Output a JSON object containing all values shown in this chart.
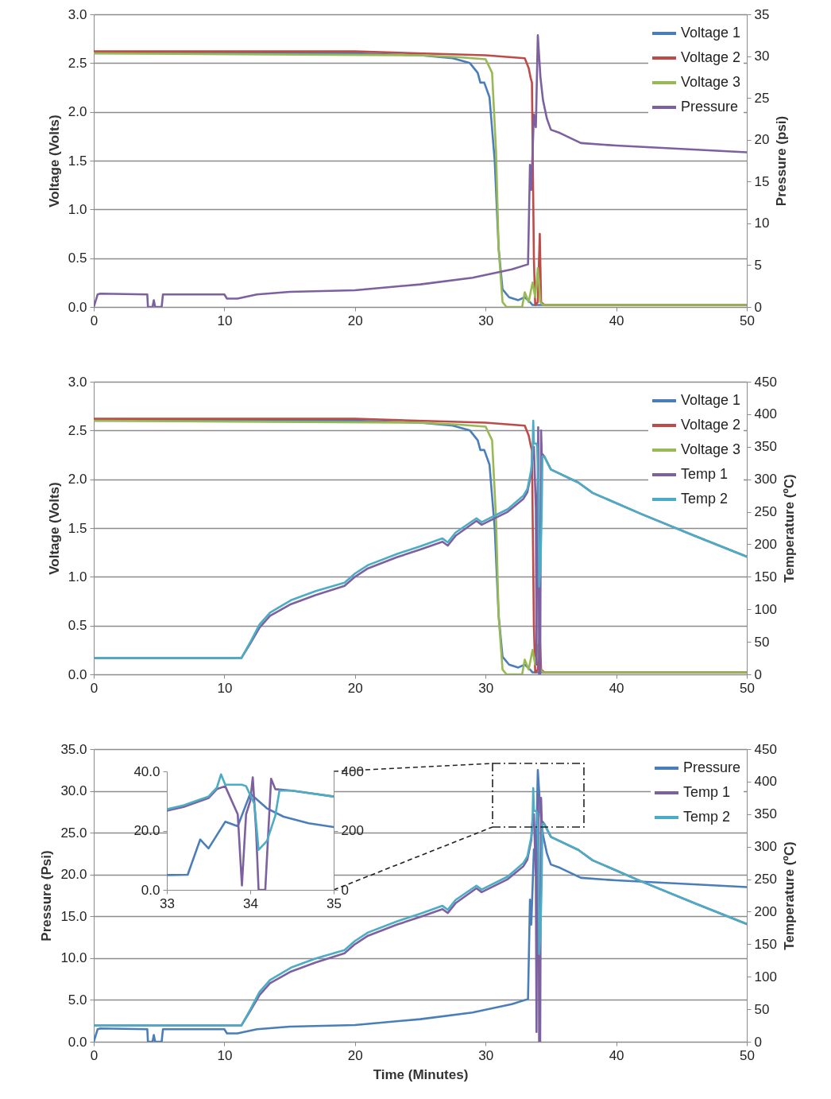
{
  "chart_data": [
    {
      "type": "line",
      "ylabel": "Voltage (Volts)",
      "y2label": "Pressure (psi)",
      "xlim": [
        0,
        50
      ],
      "xticks": [
        0,
        10,
        20,
        30,
        40,
        50
      ],
      "ylim": [
        0,
        3
      ],
      "yticks": [
        {
          "value": 0,
          "label": "0.0"
        },
        {
          "value": 0.5,
          "label": "0.5"
        },
        {
          "value": 1,
          "label": "1.0"
        },
        {
          "value": 1.5,
          "label": "1.5"
        },
        {
          "value": 2,
          "label": "2.0"
        },
        {
          "value": 2.5,
          "label": "2.5"
        },
        {
          "value": 3,
          "label": "3.0"
        }
      ],
      "y2lim": [
        0,
        35
      ],
      "y2ticks": [
        0,
        5,
        10,
        15,
        20,
        25,
        30,
        35
      ],
      "grid": "y",
      "legend": "top right",
      "series": [
        {
          "name": "Voltage 1",
          "color": "#4a7ebb",
          "x": [
            0,
            20,
            25,
            27.5,
            28.8,
            29.4,
            29.6,
            29.9,
            30.3,
            30.7,
            31,
            31.3,
            31.8,
            32.5,
            33,
            33.4,
            33.6,
            50
          ],
          "values": [
            2.6,
            2.6,
            2.58,
            2.55,
            2.5,
            2.4,
            2.3,
            2.3,
            2.15,
            1.5,
            0.6,
            0.18,
            0.1,
            0.07,
            0.1,
            0.05,
            0.02,
            0.02
          ]
        },
        {
          "name": "Voltage 2",
          "color": "#be4b48",
          "x": [
            0,
            20,
            30,
            33,
            33.3,
            33.45,
            33.55,
            33.7,
            33.8,
            34,
            34.15,
            34.25,
            34.5,
            50
          ],
          "values": [
            2.62,
            2.62,
            2.58,
            2.55,
            2.45,
            2.35,
            2.3,
            0.5,
            0.02,
            0.05,
            0.75,
            0.05,
            0.02,
            0.02
          ]
        },
        {
          "name": "Voltage 3",
          "color": "#98b954",
          "x": [
            0,
            25,
            28,
            30,
            30.5,
            30.8,
            31,
            31.3,
            31.6,
            32.8,
            33,
            33.3,
            33.6,
            33.8,
            34,
            34.2,
            34.4,
            50
          ],
          "values": [
            2.6,
            2.58,
            2.56,
            2.54,
            2.4,
            1.6,
            0.6,
            0.05,
            0,
            0,
            0.15,
            0.05,
            0.25,
            0.1,
            0.4,
            0.05,
            0.02,
            0.02
          ]
        },
        {
          "name": "Pressure",
          "color": "#7d60a0",
          "axis": "y2",
          "x": [
            0,
            0.3,
            0.5,
            4.1,
            4.15,
            4.5,
            4.6,
            4.7,
            5.2,
            5.3,
            10,
            10.2,
            11,
            12.5,
            15,
            20,
            25,
            29,
            32,
            33.25,
            33.4,
            33.5,
            33.7,
            33.85,
            34,
            34.2,
            34.4,
            34.7,
            35,
            35.7,
            37.3,
            40,
            45,
            50
          ],
          "values": [
            0,
            1.5,
            1.6,
            1.5,
            0,
            0,
            0.8,
            0,
            0,
            1.5,
            1.5,
            1,
            1,
            1.5,
            1.8,
            2,
            2.7,
            3.5,
            4.5,
            5.1,
            17,
            14,
            23,
            21.5,
            32.5,
            27.5,
            24.7,
            22.5,
            21.2,
            20.8,
            19.6,
            19.3,
            18.9,
            18.5
          ]
        }
      ]
    },
    {
      "type": "line",
      "ylabel": "Voltage (Volts)",
      "y2label": "Temperature (ºC)",
      "xlim": [
        0,
        50
      ],
      "xticks": [
        0,
        10,
        20,
        30,
        40,
        50
      ],
      "ylim": [
        0,
        3
      ],
      "yticks": [
        {
          "value": 0,
          "label": "0.0"
        },
        {
          "value": 0.5,
          "label": "0.5"
        },
        {
          "value": 1,
          "label": "1.0"
        },
        {
          "value": 1.5,
          "label": "1.5"
        },
        {
          "value": 2,
          "label": "2.0"
        },
        {
          "value": 2.5,
          "label": "2.5"
        },
        {
          "value": 3,
          "label": "3.0"
        }
      ],
      "y2lim": [
        0,
        450
      ],
      "y2ticks": [
        0,
        50,
        100,
        150,
        200,
        250,
        300,
        350,
        400,
        450
      ],
      "grid": "y",
      "legend": "top right",
      "series": [
        {
          "name": "Voltage 1",
          "color": "#4a7ebb",
          "x": [
            0,
            20,
            25,
            27.5,
            28.8,
            29.4,
            29.6,
            29.9,
            30.3,
            30.7,
            31,
            31.3,
            31.8,
            32.5,
            33,
            33.4,
            33.6,
            50
          ],
          "values": [
            2.6,
            2.6,
            2.58,
            2.55,
            2.5,
            2.4,
            2.3,
            2.3,
            2.15,
            1.5,
            0.6,
            0.18,
            0.1,
            0.07,
            0.1,
            0.05,
            0.02,
            0.02
          ]
        },
        {
          "name": "Voltage 2",
          "color": "#be4b48",
          "x": [
            0,
            20,
            30,
            33,
            33.3,
            33.45,
            33.55,
            33.7,
            33.8,
            34,
            34.15,
            34.25,
            34.5,
            50
          ],
          "values": [
            2.62,
            2.62,
            2.58,
            2.55,
            2.45,
            2.35,
            2.3,
            0.5,
            0.02,
            0.05,
            0.4,
            0.05,
            0.02,
            0.02
          ]
        },
        {
          "name": "Voltage 3",
          "color": "#98b954",
          "x": [
            0,
            25,
            28,
            30,
            30.5,
            30.8,
            31,
            31.3,
            31.6,
            32.8,
            33,
            33.3,
            33.6,
            33.8,
            34,
            34.2,
            34.4,
            50
          ],
          "values": [
            2.6,
            2.58,
            2.56,
            2.54,
            2.4,
            1.6,
            0.6,
            0.05,
            0,
            0,
            0.15,
            0.05,
            0.25,
            0.1,
            0.3,
            0.05,
            0.02,
            0.02
          ]
        },
        {
          "name": "Temp 1",
          "color": "#7d60a0",
          "axis": "y2",
          "x": [
            0,
            11.3,
            12,
            12.7,
            13.5,
            15.1,
            17,
            19.2,
            20,
            21,
            23.2,
            25,
            26.7,
            27.1,
            27.7,
            29.3,
            29.7,
            31.7,
            32.9,
            33.2,
            33.5,
            33.6,
            33.7,
            33.85,
            33.9,
            33.95,
            34,
            34.03,
            34.07,
            34.1,
            34.18,
            34.25,
            34.3,
            34.5,
            35,
            37.1,
            38.2,
            42,
            46,
            50
          ],
          "values": [
            25,
            25,
            48,
            72,
            90,
            108,
            122,
            136,
            150,
            163,
            180,
            192,
            204,
            198,
            213,
            236,
            230,
            250,
            270,
            280,
            310,
            340,
            350,
            255,
            15,
            255,
            300,
            380,
            200,
            0,
            0,
            375,
            340,
            335,
            315,
            295,
            279,
            246,
            213,
            181
          ]
        },
        {
          "name": "Temp 2",
          "color": "#4bacc6",
          "axis": "y2",
          "x": [
            0,
            11.3,
            12,
            12.7,
            13.5,
            15.1,
            17,
            19.2,
            20,
            21,
            23.2,
            25,
            26.7,
            27.1,
            27.7,
            29.3,
            29.7,
            31.7,
            32.9,
            33.2,
            33.5,
            33.6,
            33.65,
            33.7,
            33.9,
            33.95,
            34.05,
            34.1,
            34.2,
            34.3,
            34.35,
            34.5,
            35,
            37.1,
            38.2,
            42,
            46,
            50
          ],
          "values": [
            25,
            25,
            50,
            77,
            95,
            114,
            128,
            141,
            155,
            168,
            185,
            197,
            209,
            203,
            218,
            240,
            234,
            254,
            275,
            285,
            315,
            345,
            390,
            355,
            355,
            350,
            290,
            135,
            165,
            250,
            335,
            335,
            315,
            295,
            279,
            246,
            213,
            181
          ]
        }
      ]
    },
    {
      "type": "line",
      "xlabel": "Time (Minutes)",
      "ylabel": "Pressure (Psi)",
      "y2label": "Temperature (ºC)",
      "xlim": [
        0,
        50
      ],
      "xticks": [
        0,
        10,
        20,
        30,
        40,
        50
      ],
      "ylim": [
        0,
        35
      ],
      "yticks": [
        {
          "value": 0,
          "label": "0.0"
        },
        {
          "value": 5,
          "label": "5.0"
        },
        {
          "value": 10,
          "label": "10.0"
        },
        {
          "value": 15,
          "label": "15.0"
        },
        {
          "value": 20,
          "label": "20.0"
        },
        {
          "value": 25,
          "label": "25.0"
        },
        {
          "value": 30,
          "label": "30.0"
        },
        {
          "value": 35,
          "label": "35.0"
        }
      ],
      "y2lim": [
        0,
        450
      ],
      "y2ticks": [
        0,
        50,
        100,
        150,
        200,
        250,
        300,
        350,
        400,
        450
      ],
      "grid": "y",
      "legend": "top right",
      "series": [
        {
          "name": "Pressure",
          "color": "#4a7ebb",
          "x": [
            0,
            0.3,
            0.5,
            4.1,
            4.15,
            4.5,
            4.6,
            4.7,
            5.2,
            5.3,
            10,
            10.2,
            11,
            12.5,
            15,
            20,
            25,
            29,
            32,
            33.25,
            33.4,
            33.5,
            33.7,
            33.85,
            34,
            34.2,
            34.4,
            34.7,
            35,
            35.7,
            37.3,
            40,
            45,
            50
          ],
          "values": [
            0,
            1.5,
            1.6,
            1.5,
            0,
            0,
            0.8,
            0,
            0,
            1.5,
            1.5,
            1,
            1,
            1.5,
            1.8,
            2,
            2.7,
            3.5,
            4.5,
            5.1,
            17,
            14,
            23,
            21.5,
            32.5,
            27.5,
            24.7,
            22.5,
            21.2,
            20.8,
            19.6,
            19.3,
            18.9,
            18.5
          ]
        },
        {
          "name": "Temp 1",
          "color": "#7d60a0",
          "axis": "y2",
          "x": [
            0,
            11.3,
            12,
            12.7,
            13.5,
            15.1,
            17,
            19.2,
            20,
            21,
            23.2,
            25,
            26.7,
            27.1,
            27.7,
            29.3,
            29.7,
            31.7,
            32.9,
            33.2,
            33.5,
            33.6,
            33.7,
            33.85,
            33.9,
            33.95,
            34,
            34.03,
            34.07,
            34.1,
            34.18,
            34.25,
            34.3,
            34.5,
            35,
            37.1,
            38.2,
            42,
            46,
            50
          ],
          "values": [
            25,
            25,
            48,
            72,
            90,
            108,
            122,
            136,
            150,
            163,
            180,
            192,
            204,
            198,
            213,
            236,
            230,
            250,
            270,
            280,
            310,
            340,
            350,
            255,
            15,
            255,
            300,
            380,
            200,
            0,
            0,
            375,
            340,
            335,
            315,
            295,
            279,
            246,
            213,
            181
          ]
        },
        {
          "name": "Temp 2",
          "color": "#4bacc6",
          "axis": "y2",
          "x": [
            0,
            11.3,
            12,
            12.7,
            13.5,
            15.1,
            17,
            19.2,
            20,
            21,
            23.2,
            25,
            26.7,
            27.1,
            27.7,
            29.3,
            29.7,
            31.7,
            32.9,
            33.2,
            33.5,
            33.6,
            33.65,
            33.7,
            33.9,
            33.95,
            34.05,
            34.1,
            34.2,
            34.3,
            34.35,
            34.5,
            35,
            37.1,
            38.2,
            42,
            46,
            50
          ],
          "values": [
            25,
            25,
            50,
            77,
            95,
            114,
            128,
            141,
            155,
            168,
            185,
            197,
            209,
            203,
            218,
            240,
            234,
            254,
            275,
            285,
            315,
            345,
            390,
            355,
            355,
            350,
            290,
            135,
            165,
            250,
            335,
            335,
            315,
            295,
            279,
            246,
            213,
            181
          ]
        }
      ]
    },
    {
      "type": "line",
      "xlim": [
        33,
        35
      ],
      "xticks": [
        33,
        34,
        35
      ],
      "ylim": [
        0,
        40
      ],
      "yticks": [
        {
          "value": 0,
          "label": "0.0"
        },
        {
          "value": 20,
          "label": "20.0"
        },
        {
          "value": 40,
          "label": "40.0"
        }
      ],
      "y2lim": [
        0,
        400
      ],
      "y2ticks": [
        0,
        200,
        400
      ],
      "series": [
        {
          "color": "#4a7ebb",
          "x": [
            33,
            33.25,
            33.4,
            33.5,
            33.7,
            33.85,
            34,
            34.2,
            34.4,
            34.7,
            35
          ],
          "values": [
            5,
            5.1,
            17,
            14,
            23,
            21.5,
            32.5,
            27.5,
            24.7,
            22.5,
            21.2
          ]
        },
        {
          "color": "#7d60a0",
          "axis": "y2",
          "x": [
            33,
            33.2,
            33.5,
            33.6,
            33.7,
            33.85,
            33.9,
            33.95,
            34,
            34.03,
            34.07,
            34.1,
            34.18,
            34.25,
            34.3,
            34.5,
            35
          ],
          "values": [
            267,
            280,
            310,
            340,
            350,
            255,
            15,
            255,
            300,
            380,
            200,
            0,
            0,
            375,
            340,
            335,
            315
          ]
        },
        {
          "color": "#4bacc6",
          "axis": "y2",
          "x": [
            33,
            33.2,
            33.5,
            33.6,
            33.65,
            33.7,
            33.9,
            33.95,
            34.05,
            34.1,
            34.2,
            34.3,
            34.35,
            34.5,
            35
          ],
          "values": [
            272,
            285,
            315,
            345,
            390,
            355,
            355,
            350,
            290,
            135,
            165,
            250,
            335,
            335,
            315
          ]
        }
      ]
    }
  ]
}
